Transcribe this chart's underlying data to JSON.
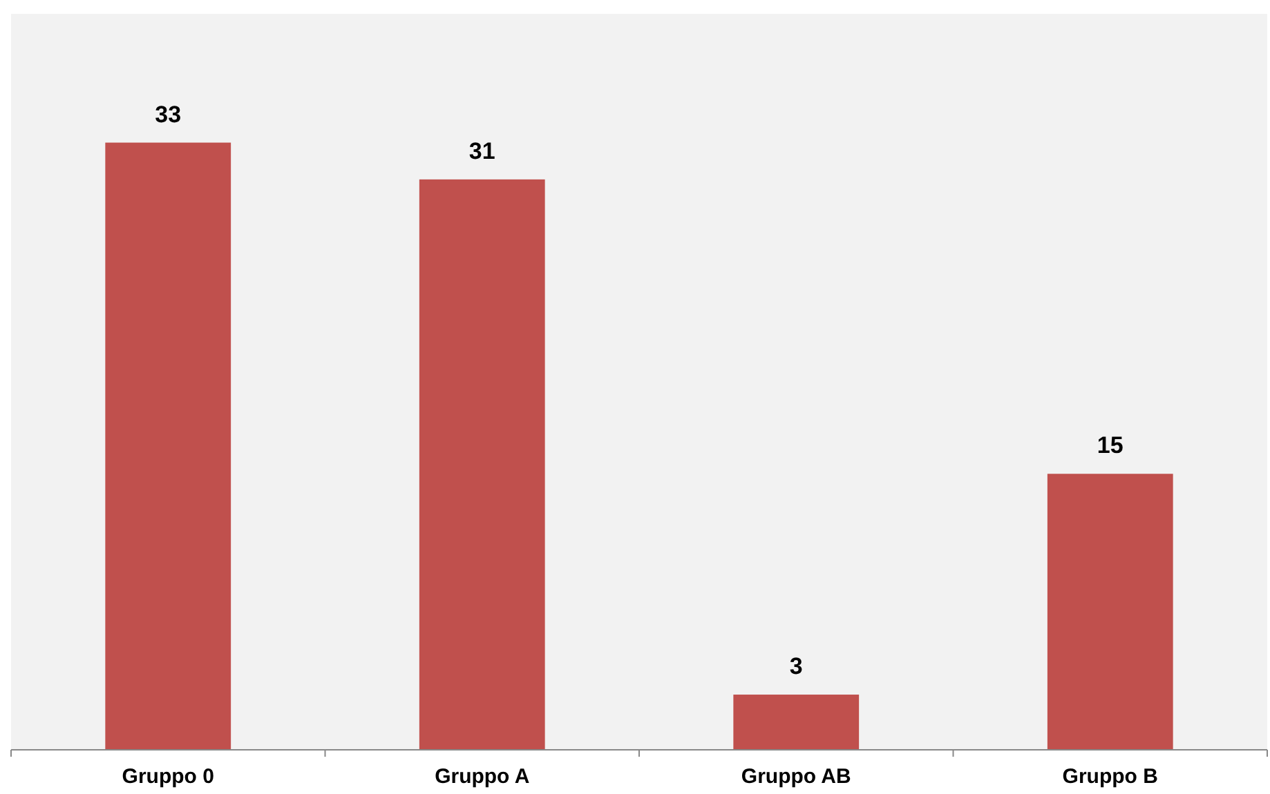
{
  "chart_data": {
    "type": "bar",
    "categories": [
      "Gruppo 0",
      "Gruppo A",
      "Gruppo AB",
      "Gruppo B"
    ],
    "values": [
      33,
      31,
      3,
      15
    ],
    "color": "#c0504d",
    "ylim": [
      0,
      40
    ],
    "data_labels": true
  }
}
